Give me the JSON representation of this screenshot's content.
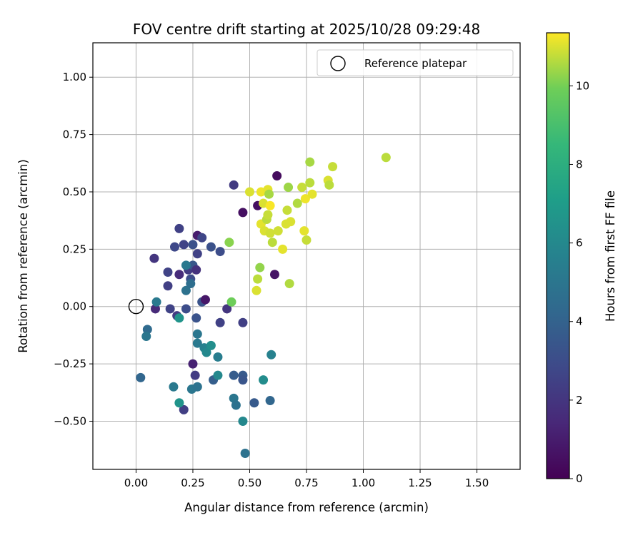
{
  "chart_data": {
    "type": "scatter",
    "title": "FOV centre drift starting at 2025/10/28 09:29:48",
    "xlabel": "Angular distance from reference (arcmin)",
    "ylabel": "Rotation from reference (arcmin)",
    "xlim": [
      -0.19,
      1.69
    ],
    "ylim": [
      -0.71,
      1.15
    ],
    "xticks": [
      "0.00",
      "0.25",
      "0.50",
      "0.75",
      "1.00",
      "1.25",
      "1.50"
    ],
    "xtick_values": [
      0.0,
      0.25,
      0.5,
      0.75,
      1.0,
      1.25,
      1.5
    ],
    "yticks": [
      "−0.50",
      "−0.25",
      "0.00",
      "0.25",
      "0.50",
      "0.75",
      "1.00"
    ],
    "ytick_values": [
      -0.5,
      -0.25,
      0.0,
      0.25,
      0.5,
      0.75,
      1.0
    ],
    "grid": true,
    "legend": {
      "position": "upper-right",
      "label": "Reference platepar",
      "marker": "open-circle"
    },
    "reference_point": {
      "x": 0.0,
      "y": 0.0
    },
    "colorbar": {
      "label": "Hours from first FF file",
      "colormap": "viridis",
      "range": [
        0,
        11.35
      ],
      "ticks": [
        "0",
        "2",
        "4",
        "6",
        "8",
        "10"
      ],
      "tick_values": [
        0,
        2,
        4,
        6,
        8,
        10
      ]
    },
    "points": [
      {
        "x": 0.08,
        "y": 0.21,
        "h": 2.0
      },
      {
        "x": 0.085,
        "y": -0.01,
        "h": 1.5
      },
      {
        "x": 0.14,
        "y": 0.09,
        "h": 2.4
      },
      {
        "x": 0.14,
        "y": 0.15,
        "h": 2.6
      },
      {
        "x": 0.15,
        "y": -0.01,
        "h": 2.6
      },
      {
        "x": 0.17,
        "y": 0.26,
        "h": 2.8
      },
      {
        "x": 0.18,
        "y": -0.04,
        "h": 2.3
      },
      {
        "x": 0.19,
        "y": 0.34,
        "h": 2.5
      },
      {
        "x": 0.19,
        "y": 0.14,
        "h": 1.6
      },
      {
        "x": 0.21,
        "y": 0.27,
        "h": 2.6
      },
      {
        "x": 0.21,
        "y": -0.45,
        "h": 2.4
      },
      {
        "x": 0.22,
        "y": -0.01,
        "h": 3.0
      },
      {
        "x": 0.23,
        "y": 0.16,
        "h": 2.2
      },
      {
        "x": 0.24,
        "y": 0.12,
        "h": 3.0
      },
      {
        "x": 0.25,
        "y": 0.27,
        "h": 3.2
      },
      {
        "x": 0.25,
        "y": 0.18,
        "h": 3.5
      },
      {
        "x": 0.25,
        "y": -0.25,
        "h": 1.2
      },
      {
        "x": 0.26,
        "y": -0.3,
        "h": 2.3
      },
      {
        "x": 0.265,
        "y": 0.16,
        "h": 1.8
      },
      {
        "x": 0.27,
        "y": 0.31,
        "h": 1.0
      },
      {
        "x": 0.27,
        "y": 0.23,
        "h": 2.5
      },
      {
        "x": 0.265,
        "y": -0.05,
        "h": 3.3
      },
      {
        "x": 0.29,
        "y": 0.3,
        "h": 2.7
      },
      {
        "x": 0.29,
        "y": 0.02,
        "h": 3.3
      },
      {
        "x": 0.305,
        "y": 0.03,
        "h": 0.8
      },
      {
        "x": 0.33,
        "y": 0.26,
        "h": 3.2
      },
      {
        "x": 0.34,
        "y": -0.32,
        "h": 3.8
      },
      {
        "x": 0.37,
        "y": 0.24,
        "h": 3.0
      },
      {
        "x": 0.37,
        "y": -0.07,
        "h": 2.5
      },
      {
        "x": 0.4,
        "y": -0.01,
        "h": 2.0
      },
      {
        "x": 0.43,
        "y": 0.53,
        "h": 2.2
      },
      {
        "x": 0.43,
        "y": -0.3,
        "h": 3.7
      },
      {
        "x": 0.47,
        "y": 0.41,
        "h": 0.5
      },
      {
        "x": 0.47,
        "y": -0.07,
        "h": 2.4
      },
      {
        "x": 0.47,
        "y": -0.3,
        "h": 3.6
      },
      {
        "x": 0.47,
        "y": -0.32,
        "h": 3.4
      },
      {
        "x": 0.52,
        "y": -0.42,
        "h": 3.6
      },
      {
        "x": 0.535,
        "y": 0.44,
        "h": 0.5
      },
      {
        "x": 0.59,
        "y": -0.41,
        "h": 4.2
      },
      {
        "x": 0.61,
        "y": 0.14,
        "h": 0.7
      },
      {
        "x": 0.62,
        "y": 0.57,
        "h": 0.4
      },
      {
        "x": 0.02,
        "y": -0.31,
        "h": 4.2
      },
      {
        "x": 0.05,
        "y": -0.1,
        "h": 4.4
      },
      {
        "x": 0.045,
        "y": -0.13,
        "h": 5.0
      },
      {
        "x": 0.09,
        "y": 0.02,
        "h": 5.2
      },
      {
        "x": 0.165,
        "y": -0.35,
        "h": 5.2
      },
      {
        "x": 0.19,
        "y": -0.05,
        "h": 6.6
      },
      {
        "x": 0.19,
        "y": -0.42,
        "h": 6.6
      },
      {
        "x": 0.22,
        "y": 0.18,
        "h": 5.2
      },
      {
        "x": 0.22,
        "y": 0.07,
        "h": 4.8
      },
      {
        "x": 0.24,
        "y": 0.1,
        "h": 4.6
      },
      {
        "x": 0.245,
        "y": -0.36,
        "h": 5.0
      },
      {
        "x": 0.27,
        "y": -0.35,
        "h": 4.8
      },
      {
        "x": 0.27,
        "y": -0.12,
        "h": 5.0
      },
      {
        "x": 0.27,
        "y": -0.16,
        "h": 5.2
      },
      {
        "x": 0.3,
        "y": -0.18,
        "h": 5.6
      },
      {
        "x": 0.31,
        "y": -0.2,
        "h": 6.0
      },
      {
        "x": 0.33,
        "y": -0.17,
        "h": 6.3
      },
      {
        "x": 0.36,
        "y": -0.22,
        "h": 5.4
      },
      {
        "x": 0.36,
        "y": -0.3,
        "h": 6.0
      },
      {
        "x": 0.43,
        "y": -0.4,
        "h": 5.0
      },
      {
        "x": 0.44,
        "y": -0.43,
        "h": 4.8
      },
      {
        "x": 0.47,
        "y": -0.5,
        "h": 6.0
      },
      {
        "x": 0.48,
        "y": -0.64,
        "h": 4.8
      },
      {
        "x": 0.56,
        "y": -0.32,
        "h": 6.2
      },
      {
        "x": 0.595,
        "y": -0.21,
        "h": 5.6
      },
      {
        "x": 0.41,
        "y": 0.28,
        "h": 10.2
      },
      {
        "x": 0.42,
        "y": 0.02,
        "h": 9.9
      },
      {
        "x": 0.5,
        "y": 0.5,
        "h": 11.0
      },
      {
        "x": 0.53,
        "y": 0.07,
        "h": 11.0
      },
      {
        "x": 0.535,
        "y": 0.12,
        "h": 10.7
      },
      {
        "x": 0.545,
        "y": 0.17,
        "h": 10.3
      },
      {
        "x": 0.55,
        "y": 0.36,
        "h": 11.1
      },
      {
        "x": 0.55,
        "y": 0.5,
        "h": 11.2
      },
      {
        "x": 0.56,
        "y": 0.45,
        "h": 11.0
      },
      {
        "x": 0.565,
        "y": 0.33,
        "h": 11.0
      },
      {
        "x": 0.575,
        "y": 0.38,
        "h": 10.7
      },
      {
        "x": 0.58,
        "y": 0.51,
        "h": 11.1
      },
      {
        "x": 0.58,
        "y": 0.4,
        "h": 10.8
      },
      {
        "x": 0.585,
        "y": 0.49,
        "h": 10.5
      },
      {
        "x": 0.59,
        "y": 0.44,
        "h": 11.3
      },
      {
        "x": 0.59,
        "y": 0.32,
        "h": 10.9
      },
      {
        "x": 0.6,
        "y": 0.28,
        "h": 10.7
      },
      {
        "x": 0.625,
        "y": 0.33,
        "h": 10.9
      },
      {
        "x": 0.645,
        "y": 0.25,
        "h": 11.1
      },
      {
        "x": 0.66,
        "y": 0.36,
        "h": 11.0
      },
      {
        "x": 0.665,
        "y": 0.42,
        "h": 10.8
      },
      {
        "x": 0.67,
        "y": 0.52,
        "h": 10.4
      },
      {
        "x": 0.675,
        "y": 0.1,
        "h": 10.6
      },
      {
        "x": 0.68,
        "y": 0.37,
        "h": 11.0
      },
      {
        "x": 0.71,
        "y": 0.45,
        "h": 10.6
      },
      {
        "x": 0.73,
        "y": 0.52,
        "h": 10.8
      },
      {
        "x": 0.74,
        "y": 0.33,
        "h": 11.1
      },
      {
        "x": 0.745,
        "y": 0.47,
        "h": 11.2
      },
      {
        "x": 0.75,
        "y": 0.29,
        "h": 10.8
      },
      {
        "x": 0.765,
        "y": 0.63,
        "h": 10.5
      },
      {
        "x": 0.765,
        "y": 0.54,
        "h": 10.7
      },
      {
        "x": 0.775,
        "y": 0.49,
        "h": 11.1
      },
      {
        "x": 0.845,
        "y": 0.55,
        "h": 11.0
      },
      {
        "x": 0.85,
        "y": 0.53,
        "h": 10.7
      },
      {
        "x": 0.865,
        "y": 0.61,
        "h": 10.8
      },
      {
        "x": 1.1,
        "y": 0.65,
        "h": 10.7
      }
    ]
  }
}
